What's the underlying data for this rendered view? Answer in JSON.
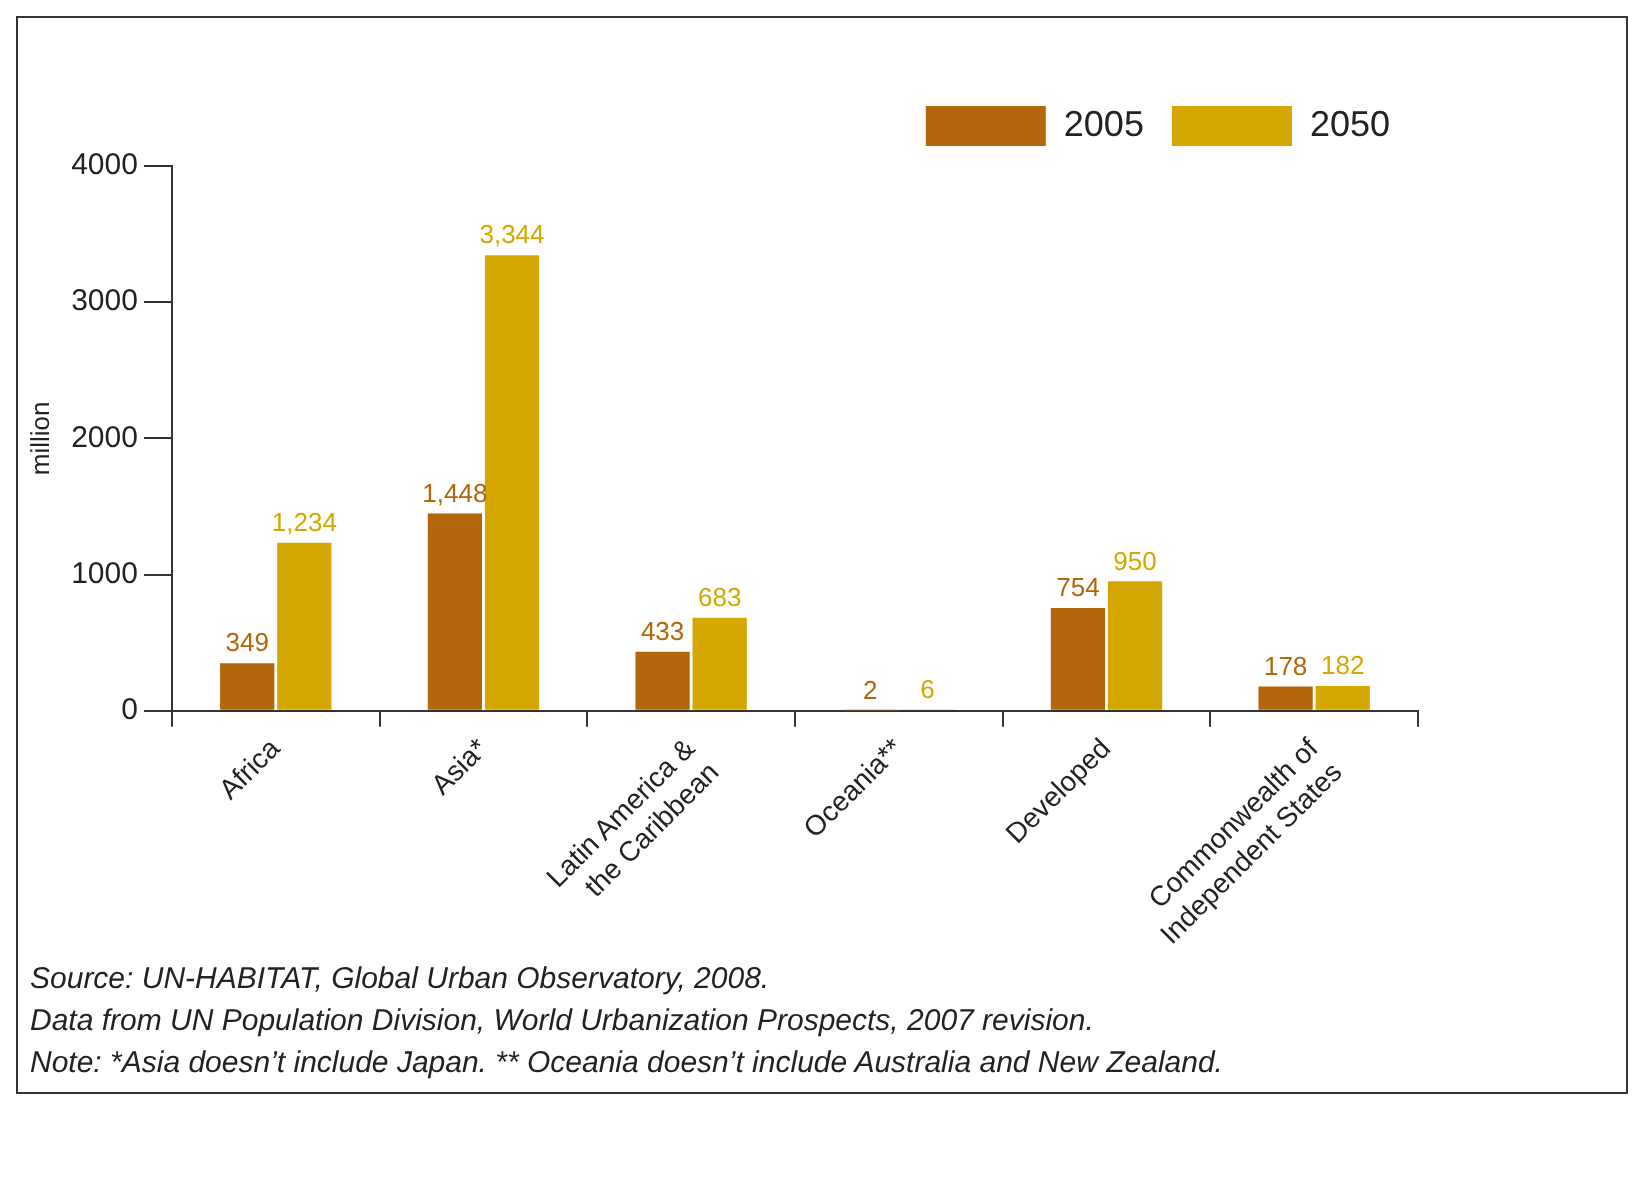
{
  "chart_data": {
    "type": "bar",
    "ylabel": "million",
    "categories": [
      "Africa",
      "Asia*",
      "Latin America & the Caribbean",
      "Oceania**",
      "Developed",
      "Commonwealth of Independent States"
    ],
    "series": [
      {
        "name": "2005",
        "color": "#b5650a",
        "values": [
          349,
          1448,
          433,
          2,
          754,
          178
        ],
        "value_labels": [
          "349",
          "1,448",
          "433",
          "2",
          "754",
          "178"
        ]
      },
      {
        "name": "2050",
        "color": "#d4a800",
        "values": [
          1234,
          3344,
          683,
          6,
          950,
          182
        ],
        "value_labels": [
          "1,234",
          "3,344",
          "683",
          "6",
          "950",
          "182"
        ]
      }
    ],
    "ylim": [
      0,
      4000
    ],
    "yticks": [
      0,
      1000,
      2000,
      3000,
      4000
    ],
    "grid": false,
    "legend": "top right",
    "data_labels": true,
    "annotations": [
      "Source: UN-HABITAT, Global Urban Observatory, 2008.",
      "Data from UN Population Division, World Urbanization Prospects, 2007 revision.",
      "Note: *Asia doesn’t include Japan. ** Oceania doesn’t include Australia and New Zealand."
    ]
  }
}
